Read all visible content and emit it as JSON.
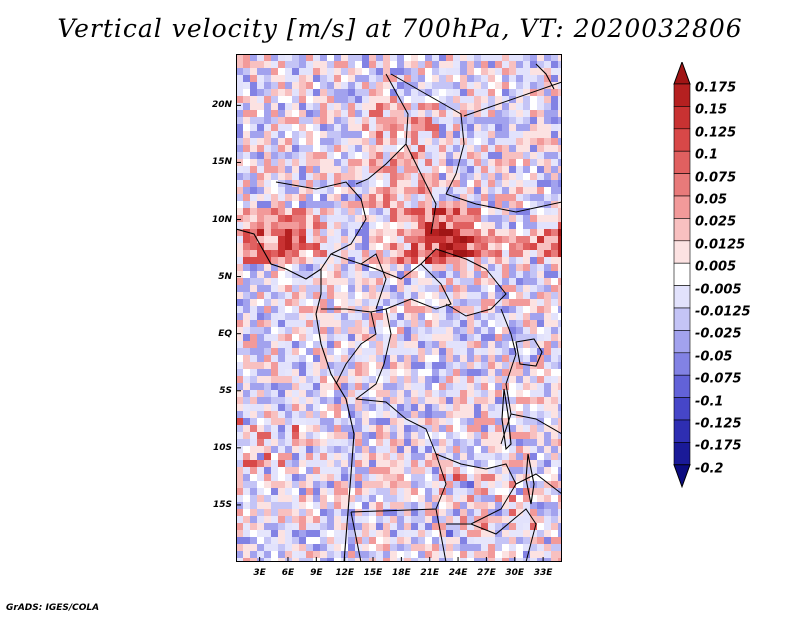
{
  "title": "Vertical velocity [m/s] at 700hPa, VT: 2020032806",
  "footer": "GrADS: IGES/COLA",
  "map": {
    "lat_ticks": [
      {
        "label": "20N",
        "value": 20
      },
      {
        "label": "15N",
        "value": 15
      },
      {
        "label": "10N",
        "value": 10
      },
      {
        "label": "5N",
        "value": 5
      },
      {
        "label": "EQ",
        "value": 0
      },
      {
        "label": "5S",
        "value": -5
      },
      {
        "label": "10S",
        "value": -10
      },
      {
        "label": "15S",
        "value": -15
      }
    ],
    "lon_ticks": [
      {
        "label": "3E",
        "value": 3
      },
      {
        "label": "6E",
        "value": 6
      },
      {
        "label": "9E",
        "value": 9
      },
      {
        "label": "12E",
        "value": 12
      },
      {
        "label": "15E",
        "value": 15
      },
      {
        "label": "18E",
        "value": 18
      },
      {
        "label": "21E",
        "value": 21
      },
      {
        "label": "24E",
        "value": 24
      },
      {
        "label": "27E",
        "value": 27
      },
      {
        "label": "30E",
        "value": 30
      },
      {
        "label": "33E",
        "value": 33
      }
    ],
    "lat_range": [
      -20,
      24.5
    ],
    "lon_range": [
      0.5,
      35
    ]
  },
  "colorbar": {
    "levels": [
      "0.175",
      "0.15",
      "0.125",
      "0.1",
      "0.075",
      "0.05",
      "0.025",
      "0.0125",
      "0.005",
      "-0.005",
      "-0.0125",
      "-0.025",
      "-0.05",
      "-0.075",
      "-0.1",
      "-0.125",
      "-0.175",
      "-0.2"
    ],
    "colors": [
      "#a01515",
      "#b52020",
      "#c83232",
      "#d84848",
      "#e06060",
      "#e87a7a",
      "#f29a9a",
      "#f8c0c0",
      "#fce2e2",
      "#ffffff",
      "#e2e2fc",
      "#c4c4f6",
      "#a2a2ee",
      "#8282e4",
      "#6262d8",
      "#4646c8",
      "#2e2eb2",
      "#1a1a98",
      "#0c0c80"
    ],
    "max_color": "#a01515",
    "min_color": "#0c0c80"
  }
}
